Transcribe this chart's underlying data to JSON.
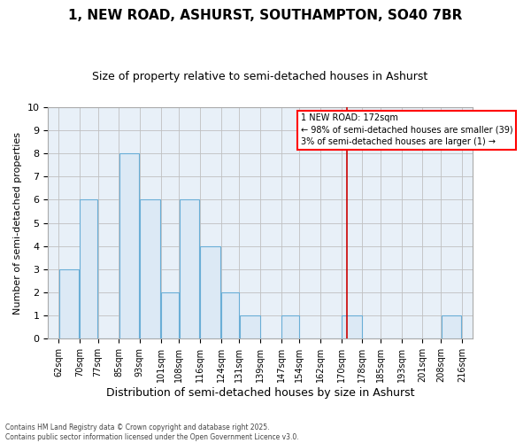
{
  "title": "1, NEW ROAD, ASHURST, SOUTHAMPTON, SO40 7BR",
  "subtitle": "Size of property relative to semi-detached houses in Ashurst",
  "xlabel": "Distribution of semi-detached houses by size in Ashurst",
  "ylabel": "Number of semi-detached properties",
  "bin_edges": [
    62,
    70,
    77,
    85,
    93,
    101,
    108,
    116,
    124,
    131,
    139,
    147,
    154,
    162,
    170,
    178,
    185,
    193,
    201,
    208,
    216
  ],
  "counts": [
    3,
    6,
    0,
    8,
    6,
    2,
    6,
    4,
    2,
    1,
    0,
    1,
    0,
    0,
    1,
    0,
    0,
    0,
    0,
    1
  ],
  "bar_color": "#dce9f5",
  "bar_edge_color": "#6aaed6",
  "grid_color": "#c0c0c0",
  "background_color": "#e8f0f8",
  "red_line_x": 172,
  "ylim": [
    0,
    10
  ],
  "yticks": [
    0,
    1,
    2,
    3,
    4,
    5,
    6,
    7,
    8,
    9,
    10
  ],
  "legend_title": "1 NEW ROAD: 172sqm",
  "legend_line1": "← 98% of semi-detached houses are smaller (39)",
  "legend_line2": "3% of semi-detached houses are larger (1) →",
  "footnote1": "Contains HM Land Registry data © Crown copyright and database right 2025.",
  "footnote2": "Contains public sector information licensed under the Open Government Licence v3.0."
}
